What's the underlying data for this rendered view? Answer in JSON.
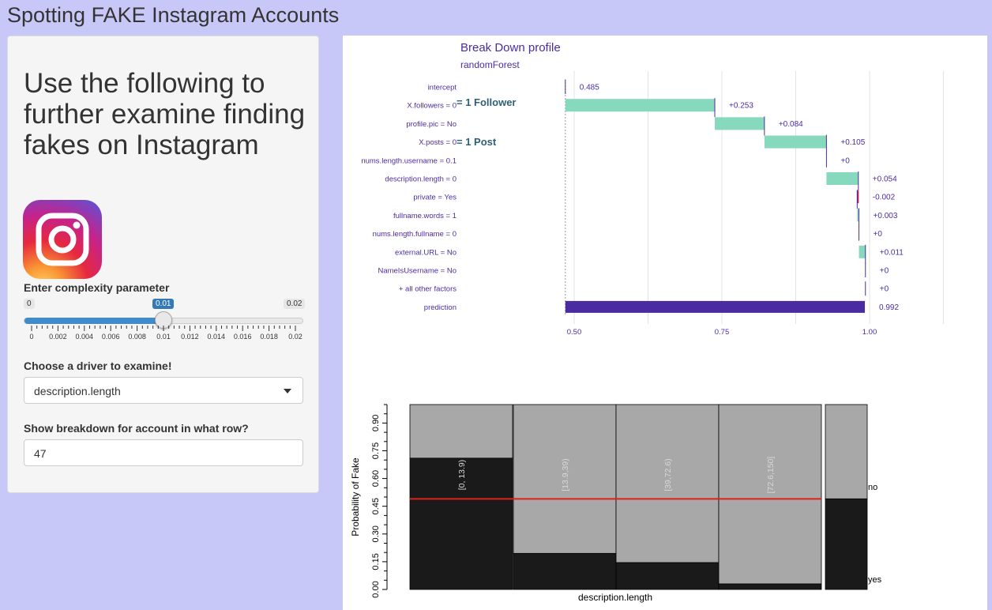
{
  "app": {
    "title": "Spotting FAKE Instagram Accounts"
  },
  "sidebar": {
    "heading": "Use the following to further examine finding fakes on Instagram",
    "logo_icon": "instagram-icon",
    "slider": {
      "label": "Enter complexity parameter",
      "min_label": "0",
      "max_label": "0.02",
      "value_label": "0.01",
      "value": 0.01,
      "min": 0,
      "max": 0.02,
      "tick_labels": [
        "0",
        "0.002",
        "0.004",
        "0.006",
        "0.008",
        "0.01",
        "0.012",
        "0.014",
        "0.016",
        "0.018",
        "0.02"
      ]
    },
    "driver_select": {
      "label": "Choose a driver to examine!",
      "value": "description.length"
    },
    "row_input": {
      "label": "Show breakdown for account in what row?",
      "value": "47"
    }
  },
  "breakdown": {
    "title": "Break Down profile",
    "subtitle": "randomForest",
    "annotations": {
      "followers": "= 1 Follower",
      "posts": "= 1 Post"
    },
    "colors": {
      "positive": "#86d9bd",
      "negative": "#d21a4c",
      "prediction": "#4b2ca0",
      "text": "#4b2ca0"
    },
    "chart_data": {
      "type": "bar",
      "subtype": "waterfall",
      "x_ticks": [
        "0.50",
        "0.75",
        "1.00"
      ],
      "xlim": [
        0.485,
        1.12
      ],
      "rows": [
        {
          "label": "intercept",
          "start": 0.485,
          "end": 0.485,
          "value_label": "0.485",
          "kind": "intercept"
        },
        {
          "label": "X.followers = 0",
          "start": 0.485,
          "end": 0.738,
          "value_label": "+0.253",
          "kind": "positive"
        },
        {
          "label": "profile.pic = No",
          "start": 0.738,
          "end": 0.822,
          "value_label": "+0.084",
          "kind": "positive"
        },
        {
          "label": "X.posts = 0",
          "start": 0.822,
          "end": 0.927,
          "value_label": "+0.105",
          "kind": "positive"
        },
        {
          "label": "nums.length.username = 0.1",
          "start": 0.927,
          "end": 0.927,
          "value_label": "+0",
          "kind": "zero"
        },
        {
          "label": "description.length = 0",
          "start": 0.927,
          "end": 0.981,
          "value_label": "+0.054",
          "kind": "positive"
        },
        {
          "label": "private = Yes",
          "start": 0.981,
          "end": 0.979,
          "value_label": "-0.002",
          "kind": "negative"
        },
        {
          "label": "fullname.words = 1",
          "start": 0.979,
          "end": 0.982,
          "value_label": "+0.003",
          "kind": "positive"
        },
        {
          "label": "nums.length.fullname = 0",
          "start": 0.982,
          "end": 0.982,
          "value_label": "+0",
          "kind": "zero"
        },
        {
          "label": "external.URL = No",
          "start": 0.982,
          "end": 0.993,
          "value_label": "+0.011",
          "kind": "positive"
        },
        {
          "label": "NameIsUsername = No",
          "start": 0.993,
          "end": 0.993,
          "value_label": "+0",
          "kind": "zero"
        },
        {
          "label": "+ all other factors",
          "start": 0.993,
          "end": 0.993,
          "value_label": "+0",
          "kind": "zero"
        },
        {
          "label": "prediction",
          "start": 0.485,
          "end": 0.992,
          "value_label": "0.992",
          "kind": "prediction"
        }
      ]
    }
  },
  "spineplot": {
    "xlabel": "description.length",
    "ylabel": "Probability of Fake",
    "y_ticks": [
      "0.00",
      "0.15",
      "0.30",
      "0.45",
      "0.60",
      "0.75",
      "0.90"
    ],
    "right_labels": [
      "no",
      "yes"
    ],
    "colors": {
      "yes": "#1a1a1a",
      "no": "#a8a8a8",
      "line": "#e0201b"
    },
    "chart_data": {
      "type": "bar",
      "subtype": "spineplot",
      "ylim": [
        0,
        1
      ],
      "reference_line": 0.49,
      "categories": [
        "[0, 13.9)",
        "[13.9,39)",
        "[39,72.6)",
        "[72.6,150]"
      ],
      "yes_proportion": [
        0.71,
        0.195,
        0.145,
        0.03
      ],
      "overall_yes": 0.49
    }
  }
}
